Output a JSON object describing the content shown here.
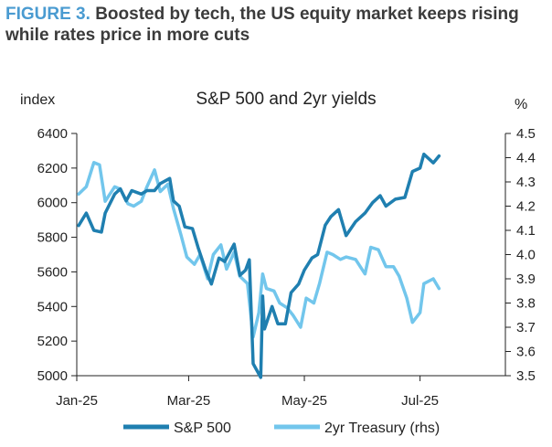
{
  "header": {
    "label": "FIGURE 3.",
    "title": "Boosted by tech, the US equity market keeps rising while rates price in more cuts"
  },
  "chart_data": {
    "type": "line",
    "title": "S&P 500 and 2yr yields",
    "ylabel_left": "index",
    "ylabel_right": "%",
    "x_ticks": [
      "Jan-25",
      "Mar-25",
      "May-25",
      "Jul-25"
    ],
    "x_range": [
      "2025-01-01",
      "2025-08-15"
    ],
    "ylim_left": [
      5000,
      6400
    ],
    "ylim_right": [
      3.5,
      4.5
    ],
    "y_ticks_left": [
      "5000",
      "5200",
      "5400",
      "5600",
      "5800",
      "6000",
      "6200",
      "6400"
    ],
    "y_ticks_right": [
      "3.5",
      "3.6",
      "3.7",
      "3.8",
      "3.9",
      "4.0",
      "4.1",
      "4.2",
      "4.3",
      "4.4",
      "4.5"
    ],
    "grid": false,
    "legend_position": "bottom",
    "colors": {
      "sp500": "#1f7fb0",
      "treasury": "#72c6ec"
    },
    "series": [
      {
        "name": "S&P 500",
        "axis": "left",
        "x": [
          "2025-01-02",
          "2025-01-06",
          "2025-01-10",
          "2025-01-14",
          "2025-01-16",
          "2025-01-21",
          "2025-01-24",
          "2025-01-27",
          "2025-01-30",
          "2025-02-04",
          "2025-02-07",
          "2025-02-11",
          "2025-02-14",
          "2025-02-19",
          "2025-02-21",
          "2025-02-24",
          "2025-02-27",
          "2025-03-03",
          "2025-03-06",
          "2025-03-10",
          "2025-03-13",
          "2025-03-17",
          "2025-03-20",
          "2025-03-25",
          "2025-03-28",
          "2025-03-31",
          "2025-04-02",
          "2025-04-04",
          "2025-04-08",
          "2025-04-09",
          "2025-04-10",
          "2025-04-14",
          "2025-04-17",
          "2025-04-21",
          "2025-04-24",
          "2025-04-28",
          "2025-05-01",
          "2025-05-05",
          "2025-05-08",
          "2025-05-12",
          "2025-05-15",
          "2025-05-19",
          "2025-05-23",
          "2025-05-28",
          "2025-06-02",
          "2025-06-06",
          "2025-06-10",
          "2025-06-13",
          "2025-06-18",
          "2025-06-23",
          "2025-06-27",
          "2025-07-01",
          "2025-07-03",
          "2025-07-08",
          "2025-07-11"
        ],
        "values": [
          5868,
          5940,
          5840,
          5830,
          5940,
          6050,
          6080,
          6010,
          6070,
          6050,
          6070,
          6070,
          6110,
          6140,
          6010,
          5980,
          5860,
          5850,
          5740,
          5610,
          5530,
          5680,
          5660,
          5760,
          5580,
          5610,
          5670,
          5070,
          4990,
          5460,
          5270,
          5400,
          5300,
          5300,
          5480,
          5530,
          5610,
          5680,
          5700,
          5870,
          5920,
          5960,
          5810,
          5890,
          5940,
          6000,
          6040,
          5980,
          6020,
          6030,
          6180,
          6200,
          6280,
          6230,
          6270
        ]
      },
      {
        "name": "2yr Treasury (rhs)",
        "axis": "right",
        "x": [
          "2025-01-02",
          "2025-01-06",
          "2025-01-10",
          "2025-01-13",
          "2025-01-16",
          "2025-01-21",
          "2025-01-24",
          "2025-01-28",
          "2025-01-31",
          "2025-02-04",
          "2025-02-07",
          "2025-02-11",
          "2025-02-14",
          "2025-02-18",
          "2025-02-21",
          "2025-02-25",
          "2025-02-28",
          "2025-03-04",
          "2025-03-07",
          "2025-03-11",
          "2025-03-14",
          "2025-03-18",
          "2025-03-21",
          "2025-03-25",
          "2025-03-28",
          "2025-04-01",
          "2025-04-04",
          "2025-04-07",
          "2025-04-09",
          "2025-04-11",
          "2025-04-15",
          "2025-04-18",
          "2025-04-22",
          "2025-04-25",
          "2025-04-29",
          "2025-05-02",
          "2025-05-06",
          "2025-05-09",
          "2025-05-13",
          "2025-05-16",
          "2025-05-20",
          "2025-05-23",
          "2025-05-28",
          "2025-06-02",
          "2025-06-05",
          "2025-06-09",
          "2025-06-13",
          "2025-06-17",
          "2025-06-20",
          "2025-06-24",
          "2025-06-27",
          "2025-07-01",
          "2025-07-03",
          "2025-07-08",
          "2025-07-11"
        ],
        "values": [
          4.25,
          4.28,
          4.38,
          4.37,
          4.22,
          4.28,
          4.27,
          4.21,
          4.2,
          4.22,
          4.28,
          4.35,
          4.26,
          4.29,
          4.19,
          4.08,
          3.99,
          3.96,
          4.0,
          3.9,
          4.0,
          4.04,
          3.94,
          4.01,
          3.91,
          3.88,
          3.66,
          3.76,
          3.92,
          3.86,
          3.85,
          3.8,
          3.78,
          3.75,
          3.7,
          3.82,
          3.8,
          3.88,
          4.01,
          4.0,
          3.98,
          3.99,
          3.98,
          3.92,
          4.03,
          4.02,
          3.95,
          3.95,
          3.91,
          3.82,
          3.72,
          3.76,
          3.88,
          3.9,
          3.86
        ]
      }
    ]
  }
}
